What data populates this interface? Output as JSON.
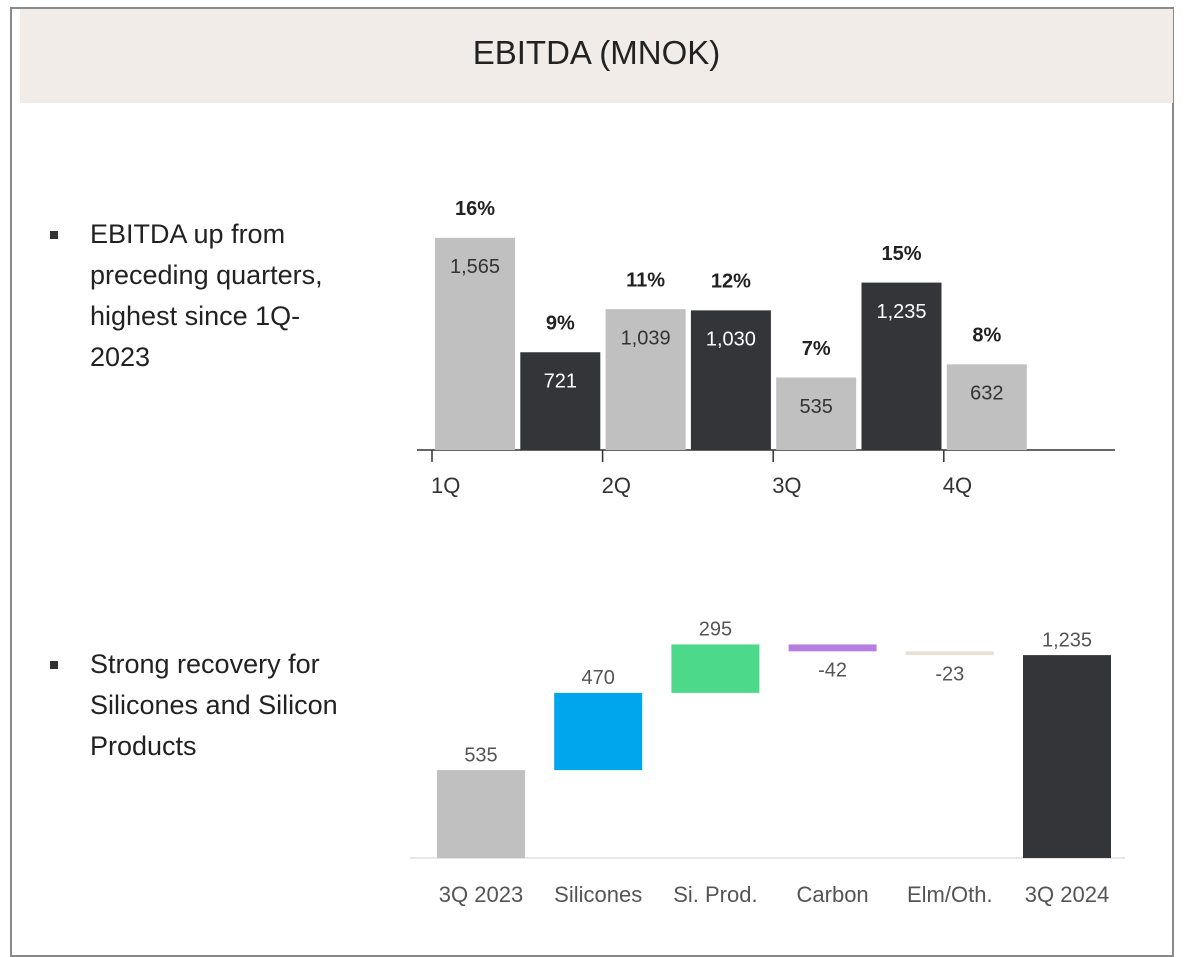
{
  "title": "EBITDA (MNOK)",
  "bullets": [
    "EBITDA up from preceding quarters, highest since 1Q-2023",
    "Strong recovery for Silicones and Silicon Products"
  ],
  "chart_data": [
    {
      "type": "bar",
      "categories": [
        "1Q",
        null,
        "2Q",
        null,
        "3Q",
        null,
        "4Q"
      ],
      "values": [
        1565,
        721,
        1039,
        1030,
        535,
        1235,
        632
      ],
      "value_labels": [
        "1,565",
        "721",
        "1,039",
        "1,030",
        "535",
        "1,235",
        "632"
      ],
      "margins": [
        16,
        9,
        11,
        12,
        7,
        15,
        8
      ],
      "margin_labels": [
        "16%",
        "9%",
        "11%",
        "12%",
        "7%",
        "15%",
        "8%"
      ],
      "colors": [
        "#c0c0c0",
        "#333538",
        "#c0c0c0",
        "#333538",
        "#c0c0c0",
        "#333538",
        "#c0c0c0"
      ],
      "ylim": [
        0,
        1800
      ]
    },
    {
      "type": "waterfall",
      "categories": [
        "3Q 2023",
        "Silicones",
        "Si. Prod.",
        "Carbon",
        "Elm/Oth.",
        "3Q 2024"
      ],
      "values": [
        535,
        470,
        295,
        -42,
        -23,
        1235
      ],
      "value_labels": [
        "535",
        "470",
        "295",
        "-42",
        "-23",
        "1,235"
      ],
      "measures": [
        "absolute",
        "relative",
        "relative",
        "relative",
        "relative",
        "total"
      ],
      "colors": [
        "#c0c0c0",
        "#00a6ed",
        "#4cd98a",
        "#b57ee0",
        "#eadfd5",
        "#333538"
      ],
      "ylim": [
        0,
        1400
      ]
    }
  ]
}
